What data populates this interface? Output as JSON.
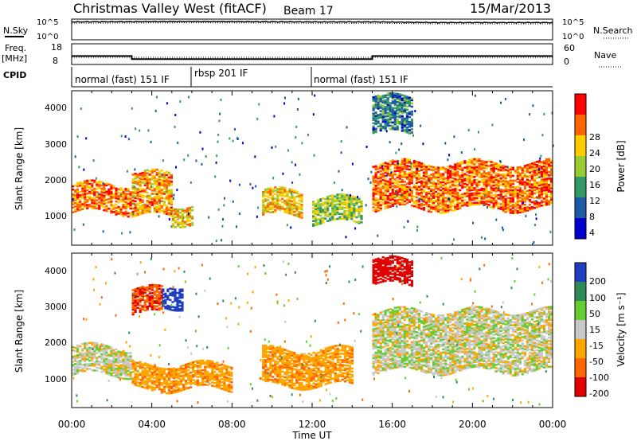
{
  "header": {
    "station": "Christmas Valley West (fitACF)",
    "beam": "Beam 17",
    "date": "15/Mar/2013"
  },
  "top_panels": {
    "noise_left_label": "N.Sky",
    "noise_right_label": "N.Search",
    "noise_ticks_left": [
      "10^5",
      "10^0"
    ],
    "noise_ticks_right": [
      "10^5",
      "10^0"
    ],
    "freq_label_1": "Freq.",
    "freq_label_2": "[MHz]",
    "freq_ticks": [
      "18",
      "8"
    ],
    "nave_label": "Nave",
    "nave_ticks": [
      "60",
      "0"
    ],
    "cpid_label": "CPID",
    "cpid_segments": [
      {
        "label": "normal (fast) 151 IF",
        "start": "00:00",
        "end": "06:00"
      },
      {
        "label": "rbsp 201 IF",
        "start": "06:00",
        "end": "12:00"
      },
      {
        "label": "normal (fast) 151 IF",
        "start": "12:00",
        "end": "24:00"
      }
    ]
  },
  "x_axis": {
    "label": "Time UT",
    "ticks": [
      "00:00",
      "04:00",
      "08:00",
      "12:00",
      "16:00",
      "20:00",
      "00:00"
    ]
  },
  "power_panel": {
    "ylabel": "Slant Range [km]",
    "yticks": [
      "4000",
      "3000",
      "2000",
      "1000"
    ],
    "colorbar_label": "Power [dB]",
    "colorbar_ticks": [
      "28",
      "24",
      "20",
      "16",
      "12",
      "8",
      "4"
    ],
    "colors": [
      "#ff0000",
      "#ff6600",
      "#ffcc00",
      "#99cc33",
      "#339966",
      "#1f5aa6",
      "#0000cc"
    ]
  },
  "velocity_panel": {
    "ylabel": "Slant Range [km]",
    "yticks": [
      "4000",
      "3000",
      "2000",
      "1000"
    ],
    "colorbar_label": "Velocity [m s⁻¹]",
    "colorbar_ticks": [
      "200",
      "100",
      "50",
      "15",
      "-15",
      "-50",
      "-100",
      "-200"
    ],
    "colors": [
      "#1f3fbf",
      "#2e8b57",
      "#66cc33",
      "#c8c8c8",
      "#ffa500",
      "#ff6600",
      "#e00000"
    ]
  },
  "chart_data": [
    {
      "type": "line",
      "title": "Christmas Valley West (fitACF) Beam 17 15/Mar/2013",
      "xlabel": "Time UT",
      "series": [
        {
          "name": "N.Sky",
          "x": [
            0,
            3,
            6,
            9,
            12,
            15,
            18,
            21,
            24
          ],
          "values": [
            30000,
            35000,
            40000,
            35000,
            30000,
            30000,
            20000,
            20000,
            20000
          ]
        }
      ]
    },
    {
      "type": "line",
      "series": [
        {
          "name": "Freq.",
          "x": [
            0,
            3,
            3,
            15,
            15,
            24
          ],
          "values": [
            12,
            12,
            10.4,
            10.4,
            12,
            12
          ]
        },
        {
          "name": "Nave",
          "x": [
            0,
            24
          ],
          "values": [
            20,
            20
          ]
        }
      ]
    },
    {
      "type": "heatmap",
      "title": "Power",
      "xlabel": "Time UT",
      "ylabel": "Slant Range [km]",
      "xlim": [
        0,
        24
      ],
      "ylim": [
        200,
        4500
      ],
      "colorbar": {
        "label": "Power [dB]",
        "range": [
          0,
          30
        ]
      },
      "regions": [
        {
          "t": [
            0,
            3
          ],
          "range_km": [
            1100,
            1900
          ],
          "power_db": 24
        },
        {
          "t": [
            3,
            5
          ],
          "range_km": [
            1000,
            2200
          ],
          "power_db": 22
        },
        {
          "t": [
            5,
            6
          ],
          "range_km": [
            800,
            1300
          ],
          "power_db": 20
        },
        {
          "t": [
            9.5,
            11.5
          ],
          "range_km": [
            1000,
            1700
          ],
          "power_db": 20
        },
        {
          "t": [
            12,
            14.5
          ],
          "range_km": [
            800,
            1500
          ],
          "power_db": 16
        },
        {
          "t": [
            15,
            24
          ],
          "range_km": [
            1200,
            2500
          ],
          "power_db": 24
        },
        {
          "t": [
            15,
            17
          ],
          "range_km": [
            3300,
            4300
          ],
          "power_db": 10
        }
      ]
    },
    {
      "type": "heatmap",
      "title": "Velocity",
      "xlabel": "Time UT",
      "ylabel": "Slant Range [km]",
      "xlim": [
        0,
        24
      ],
      "ylim": [
        200,
        4500
      ],
      "colorbar": {
        "label": "Velocity [m s⁻¹]",
        "range": [
          -200,
          200
        ]
      },
      "regions": [
        {
          "t": [
            0,
            3
          ],
          "range_km": [
            1100,
            1900
          ],
          "velocity": 0
        },
        {
          "t": [
            3,
            4.5
          ],
          "range_km": [
            2800,
            3500
          ],
          "velocity": -150
        },
        {
          "t": [
            4.5,
            5.5
          ],
          "range_km": [
            3000,
            3600
          ],
          "velocity": 200
        },
        {
          "t": [
            3,
            8
          ],
          "range_km": [
            700,
            1400
          ],
          "velocity": -60
        },
        {
          "t": [
            9.5,
            14
          ],
          "range_km": [
            800,
            1800
          ],
          "velocity": -60
        },
        {
          "t": [
            15,
            24
          ],
          "range_km": [
            1200,
            2900
          ],
          "velocity": 0
        },
        {
          "t": [
            15,
            17
          ],
          "range_km": [
            3600,
            4300
          ],
          "velocity": -180
        }
      ]
    }
  ]
}
